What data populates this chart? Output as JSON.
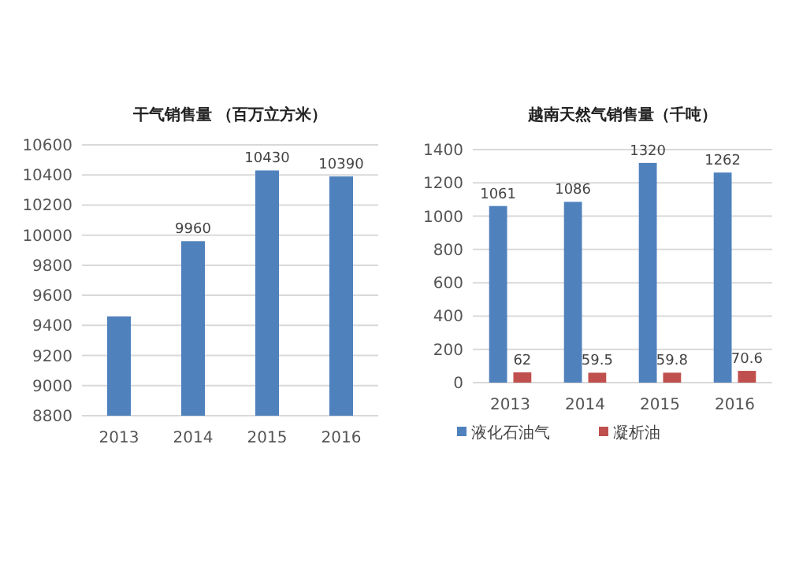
{
  "chart_data": [
    {
      "type": "bar",
      "title": "干气销售量 （百万立方米）",
      "categories": [
        "2013",
        "2014",
        "2015",
        "2016"
      ],
      "series": [
        {
          "color": "#4f81bd",
          "values": [
            9460,
            9960,
            10430,
            10390
          ],
          "value_labels": [
            null,
            "9960",
            "10430",
            "10390"
          ]
        }
      ],
      "ylim": [
        8800,
        10600
      ],
      "yticks": [
        8800,
        9000,
        9200,
        9400,
        9600,
        9800,
        10000,
        10200,
        10400,
        10600
      ],
      "grid": "y",
      "legend": false
    },
    {
      "type": "bar",
      "title": "越南天然气销售量（千吨）",
      "categories": [
        "2013",
        "2014",
        "2015",
        "2016"
      ],
      "series": [
        {
          "name": "液化石油气",
          "color": "#4f81bd",
          "values": [
            1061,
            1086,
            1320,
            1262
          ]
        },
        {
          "name": "凝析油",
          "color": "#c0504d",
          "values": [
            62,
            59.5,
            59.8,
            70.6
          ]
        }
      ],
      "ylim": [
        0,
        1400
      ],
      "yticks": [
        0,
        200,
        400,
        600,
        800,
        1000,
        1200,
        1400
      ],
      "grid": "y",
      "data_labels": true,
      "legend": "bottom"
    }
  ]
}
